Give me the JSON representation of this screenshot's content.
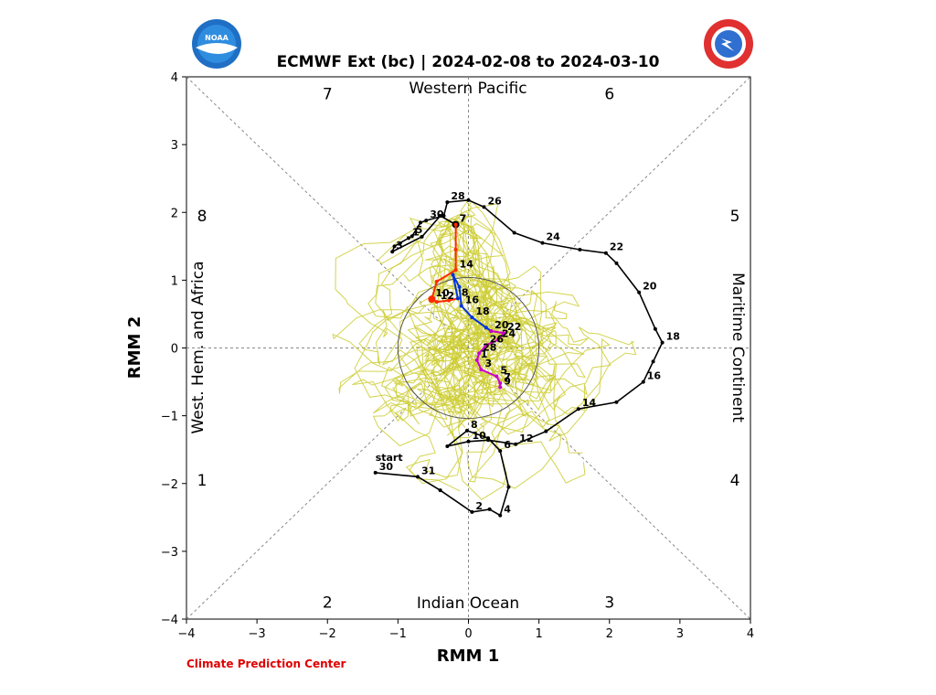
{
  "title": "ECMWF Ext (bc) | 2024-02-08 to 2024-03-10",
  "credit": "Climate Prediction Center",
  "logos": {
    "left": "noaa-logo",
    "right": "nws-logo"
  },
  "chart_data": {
    "type": "scatter",
    "xlabel": "RMM 1",
    "ylabel": "RMM 2",
    "xlim": [
      -4,
      4
    ],
    "ylim": [
      -4,
      4
    ],
    "xticks": [
      "−4",
      "−3",
      "−2",
      "−1",
      "0",
      "1",
      "2",
      "3",
      "4"
    ],
    "yticks": [
      "−4",
      "−3",
      "−2",
      "−1",
      "0",
      "1",
      "2",
      "3",
      "4"
    ],
    "unit_circle_radius": 1,
    "regions": {
      "top": "Western Pacific",
      "bottom": "Indian Ocean",
      "left": "West. Hem. and Africa",
      "right": "Maritime Continent"
    },
    "phases": [
      "1",
      "2",
      "3",
      "4",
      "5",
      "6",
      "7",
      "8"
    ],
    "colors": {
      "ensemble": "#cccc33",
      "observed": "#000000",
      "forecast_week1": "#ff2a00",
      "forecast_week2": "#0033dd",
      "forecast_week3": "#cc00cc",
      "guides": "#888888"
    },
    "observed": {
      "start_label": "start",
      "points": [
        {
          "x": -1.32,
          "y": -1.84,
          "label": "30"
        },
        {
          "x": -0.72,
          "y": -1.9,
          "label": "31"
        },
        {
          "x": -0.4,
          "y": -2.1,
          "label": ""
        },
        {
          "x": 0.05,
          "y": -2.42,
          "label": "2"
        },
        {
          "x": 0.3,
          "y": -2.38,
          "label": ""
        },
        {
          "x": 0.45,
          "y": -2.47,
          "label": "4"
        },
        {
          "x": 0.57,
          "y": -2.05,
          "label": ""
        },
        {
          "x": 0.45,
          "y": -1.52,
          "label": "6"
        },
        {
          "x": 0.28,
          "y": -1.33,
          "label": ""
        },
        {
          "x": -0.02,
          "y": -1.22,
          "label": "8"
        },
        {
          "x": -0.3,
          "y": -1.45,
          "label": ""
        },
        {
          "x": 0.0,
          "y": -1.38,
          "label": "10"
        },
        {
          "x": 0.28,
          "y": -1.36,
          "label": ""
        },
        {
          "x": 0.67,
          "y": -1.42,
          "label": "12"
        },
        {
          "x": 1.1,
          "y": -1.23,
          "label": ""
        },
        {
          "x": 1.56,
          "y": -0.9,
          "label": "14"
        },
        {
          "x": 2.1,
          "y": -0.8,
          "label": ""
        },
        {
          "x": 2.48,
          "y": -0.5,
          "label": "16"
        },
        {
          "x": 2.62,
          "y": -0.2,
          "label": ""
        },
        {
          "x": 2.75,
          "y": 0.08,
          "label": "18"
        },
        {
          "x": 2.65,
          "y": 0.28,
          "label": ""
        },
        {
          "x": 2.42,
          "y": 0.82,
          "label": "20"
        },
        {
          "x": 2.1,
          "y": 1.25,
          "label": ""
        },
        {
          "x": 1.95,
          "y": 1.4,
          "label": "22"
        },
        {
          "x": 1.58,
          "y": 1.45,
          "label": ""
        },
        {
          "x": 1.05,
          "y": 1.55,
          "label": "24"
        },
        {
          "x": 0.65,
          "y": 1.7,
          "label": ""
        },
        {
          "x": 0.22,
          "y": 2.08,
          "label": "26"
        },
        {
          "x": 0.0,
          "y": 2.18,
          "label": ""
        },
        {
          "x": -0.3,
          "y": 2.15,
          "label": "28"
        },
        {
          "x": -0.35,
          "y": 1.95,
          "label": ""
        },
        {
          "x": -0.6,
          "y": 1.88,
          "label": "30"
        },
        {
          "x": -0.68,
          "y": 1.85,
          "label": ""
        },
        {
          "x": -0.8,
          "y": 1.65,
          "label": "5"
        },
        {
          "x": -0.85,
          "y": 1.62,
          "label": "1"
        },
        {
          "x": -1.05,
          "y": 1.5,
          "label": ""
        },
        {
          "x": -1.08,
          "y": 1.42,
          "label": "3"
        },
        {
          "x": -0.66,
          "y": 1.64,
          "label": ""
        },
        {
          "x": -0.4,
          "y": 1.95,
          "label": ""
        },
        {
          "x": -0.18,
          "y": 1.82,
          "label": "7"
        }
      ]
    },
    "forecast": [
      {
        "week": 1,
        "points": [
          {
            "x": -0.18,
            "y": 1.82,
            "label": "7"
          },
          {
            "x": -0.18,
            "y": 1.45,
            "label": ""
          },
          {
            "x": -0.18,
            "y": 1.15,
            "label": "14"
          },
          {
            "x": -0.45,
            "y": 0.98,
            "label": ""
          },
          {
            "x": -0.52,
            "y": 0.72,
            "label": "10"
          },
          {
            "x": -0.45,
            "y": 0.68,
            "label": "12"
          },
          {
            "x": -0.28,
            "y": 0.7,
            "label": ""
          },
          {
            "x": -0.15,
            "y": 0.73,
            "label": "8"
          }
        ]
      },
      {
        "week": 2,
        "points": [
          {
            "x": -0.15,
            "y": 0.73,
            "label": ""
          },
          {
            "x": -0.22,
            "y": 1.08,
            "label": ""
          },
          {
            "x": -0.13,
            "y": 0.9,
            "label": ""
          },
          {
            "x": -0.1,
            "y": 0.62,
            "label": "16"
          },
          {
            "x": 0.05,
            "y": 0.45,
            "label": "18"
          },
          {
            "x": 0.25,
            "y": 0.3,
            "label": ""
          },
          {
            "x": 0.32,
            "y": 0.25,
            "label": "20"
          }
        ]
      },
      {
        "week": 3,
        "points": [
          {
            "x": 0.32,
            "y": 0.25,
            "label": ""
          },
          {
            "x": 0.5,
            "y": 0.22,
            "label": "22"
          },
          {
            "x": 0.42,
            "y": 0.12,
            "label": "24"
          },
          {
            "x": 0.25,
            "y": 0.04,
            "label": "26"
          },
          {
            "x": 0.15,
            "y": -0.08,
            "label": "28"
          },
          {
            "x": 0.12,
            "y": -0.18,
            "label": "1"
          },
          {
            "x": 0.18,
            "y": -0.32,
            "label": "3"
          },
          {
            "x": 0.4,
            "y": -0.42,
            "label": "5"
          },
          {
            "x": 0.45,
            "y": -0.52,
            "label": "7"
          },
          {
            "x": 0.45,
            "y": -0.58,
            "label": "9"
          }
        ]
      }
    ],
    "ensemble_members": 30
  }
}
